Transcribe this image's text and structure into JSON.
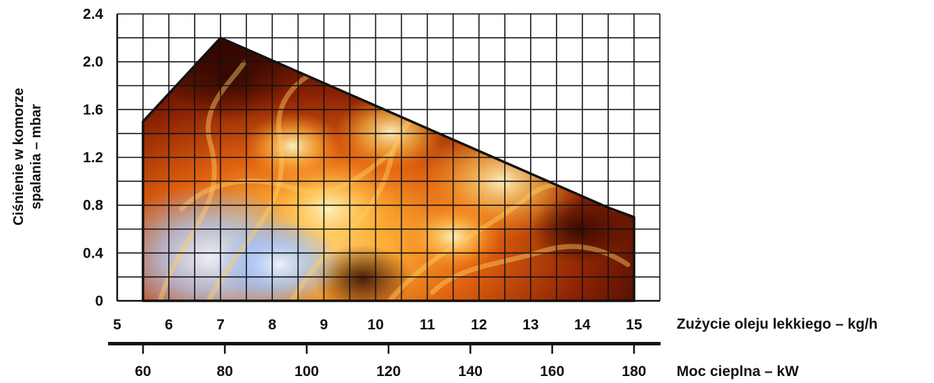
{
  "chart_data": {
    "type": "area",
    "xlabel": "Zużycie oleju lekkiego – kg/h",
    "ylabel_line1": "Ciśnienie w komorze",
    "ylabel_line2": "spalania – mbar",
    "secondary_xlabel": "Moc cieplna – kW",
    "xlim": [
      5,
      15.5
    ],
    "ylim": [
      0,
      2.4
    ],
    "x_ticks": [
      5,
      6,
      7,
      8,
      9,
      10,
      11,
      12,
      13,
      14,
      15
    ],
    "x_tick_labels": [
      "5",
      "6",
      "7",
      "8",
      "9",
      "10",
      "11",
      "12",
      "13",
      "14",
      "15"
    ],
    "y_ticks": [
      0,
      0.4,
      0.8,
      1.2,
      1.6,
      2.0,
      2.4
    ],
    "y_tick_labels": [
      "0",
      "0.4",
      "0.8",
      "1.2",
      "1.6",
      "2.0",
      "2.4"
    ],
    "secondary_ticks": [
      60,
      80,
      100,
      120,
      140,
      160,
      180
    ],
    "secondary_tick_labels": [
      "60",
      "80",
      "100",
      "120",
      "140",
      "160",
      "180"
    ],
    "secondary_xlim": [
      59,
      188
    ],
    "grid": true,
    "series": [
      {
        "x": [
          5.5,
          5.5,
          7.0,
          14.5,
          15.0,
          15.0
        ],
        "y": [
          0,
          1.5,
          2.2,
          0.78,
          0.7,
          0
        ]
      }
    ],
    "colors": {
      "grid": "#111111",
      "outline": "#111111",
      "flame_dark": "#3a0800",
      "flame_mid": "#d4510c",
      "flame_bright": "#ffd76a",
      "flame_blue": "#9cc4ff"
    }
  }
}
